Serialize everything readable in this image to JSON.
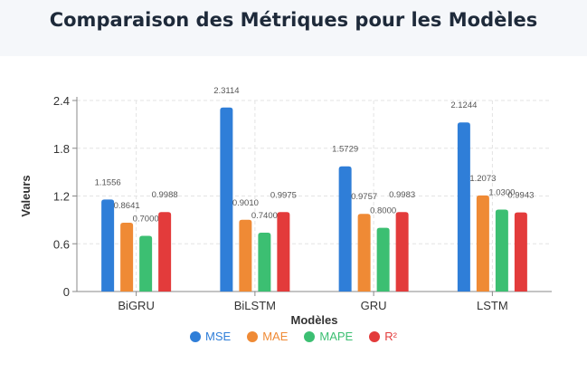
{
  "title": "Comparaison des Métriques pour les Modèles",
  "chart_data": {
    "type": "bar",
    "title": "Comparaison des Métriques pour les Modèles",
    "xlabel": "Modèles",
    "ylabel": "Valeurs",
    "ylim": [
      0,
      2.4
    ],
    "yticks": [
      "0",
      "0.6",
      "1.2",
      "1.8",
      "2.4"
    ],
    "grid": true,
    "legend_position": "bottom",
    "categories": [
      "BiGRU",
      "BiLSTM",
      "GRU",
      "LSTM"
    ],
    "series": [
      {
        "name": "MSE",
        "color": "#2f7ed8",
        "values": [
          1.1556,
          2.3114,
          1.5729,
          2.1244
        ],
        "labels": [
          "1.1556",
          "2.3114",
          "1.5729",
          "2.1244"
        ]
      },
      {
        "name": "MAE",
        "color": "#ef8a35",
        "values": [
          0.8641,
          0.901,
          0.9757,
          1.2073
        ],
        "labels": [
          "0.8641",
          "0.9010",
          "0.9757",
          "1.2073"
        ]
      },
      {
        "name": "MAPE",
        "color": "#3cbf72",
        "values": [
          0.7,
          0.74,
          0.8,
          1.03
        ],
        "labels": [
          "0.7000",
          "0.7400",
          "0.8000",
          "1.0300"
        ]
      },
      {
        "name": "R²",
        "color": "#e33b3b",
        "values": [
          0.9988,
          0.9975,
          0.9983,
          0.9943
        ],
        "labels": [
          "0.9988",
          "0.9975",
          "0.9983",
          "0.9943"
        ]
      }
    ]
  }
}
